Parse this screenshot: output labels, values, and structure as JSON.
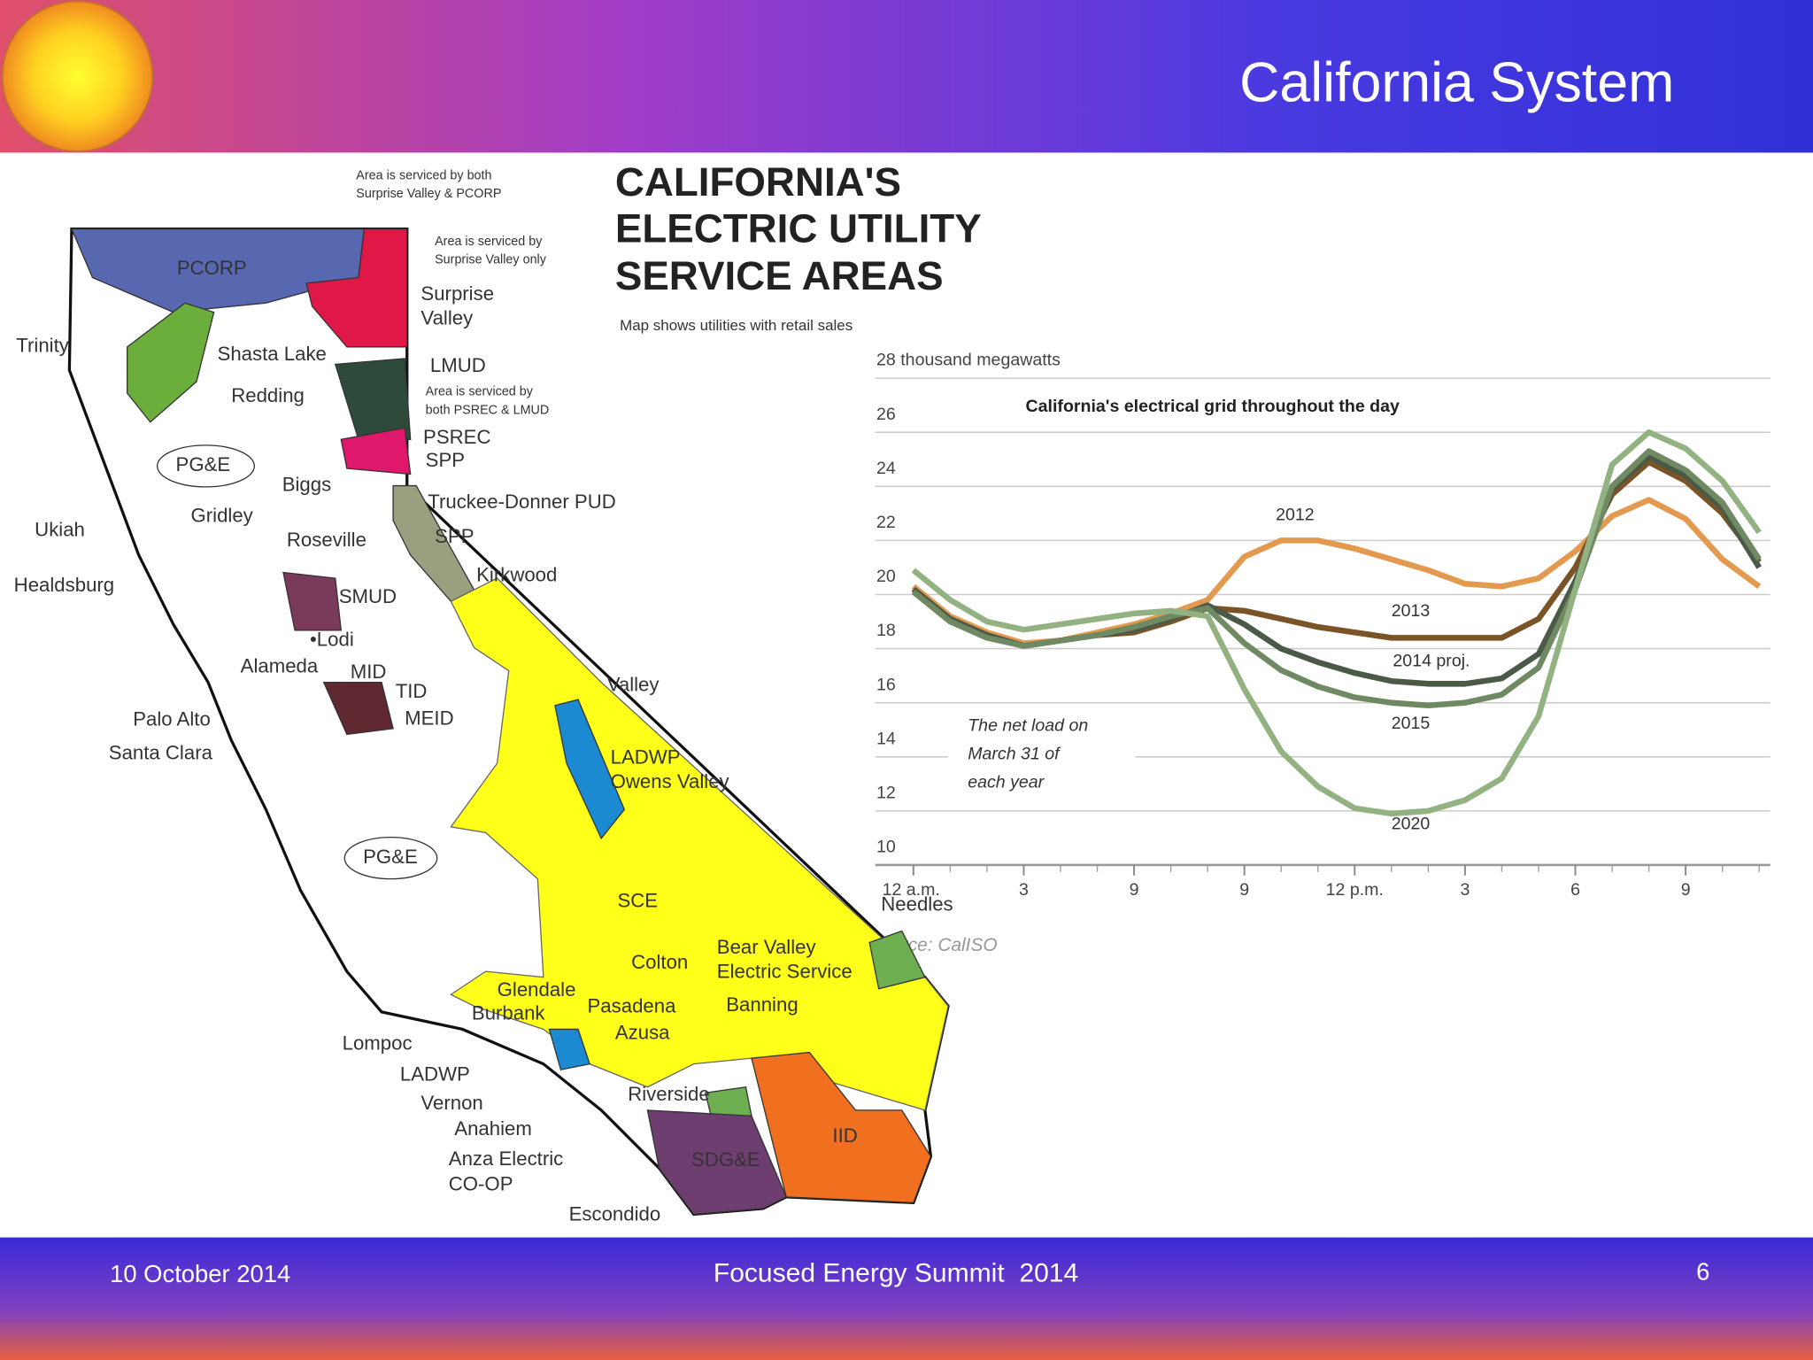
{
  "header": {
    "title": "California System"
  },
  "footer": {
    "date": "10 October 2014",
    "event": "Focused Energy Summit  2014",
    "page": "6"
  },
  "map": {
    "title": [
      "CALIFORNIA'S",
      "ELECTRIC UTILITY",
      "SERVICE AREAS"
    ],
    "subtitle": "Map shows utilities with retail sales",
    "labels": [
      "Area is serviced by both",
      "Surprise Valley & PCORP",
      "PCORP",
      "Area is serviced by",
      "Surprise Valley only",
      "Surprise",
      "Valley",
      "Trinity",
      "Shasta Lake",
      "Redding",
      "LMUD",
      "Area is serviced by",
      "both PSREC & LMUD",
      "PSREC",
      "SPP",
      "PG&E",
      "Biggs",
      "Gridley",
      "Truckee-Donner PUD",
      "Ukiah",
      "SPP",
      "Roseville",
      "Kirkwood",
      "Healdsburg",
      "SMUD",
      "•Lodi",
      "Alameda",
      "MID",
      "TID",
      "Valley",
      "MEID",
      "Palo Alto",
      "Santa Clara",
      "LADWP",
      "Owens Valley",
      "PG&E",
      "Needles",
      "SCE",
      "Bear Valley",
      "Electric Service",
      "Colton",
      "Glendale",
      "Burbank",
      "Pasadena",
      "Banning",
      "Azusa",
      "Lompoc",
      "LADWP",
      "Vernon",
      "Riverside",
      "IID",
      "Anahiem",
      "Anza Electric",
      "CO-OP",
      "SDG&E",
      "Escondido"
    ]
  },
  "chart_data": {
    "type": "line",
    "title": "California's electrical grid throughout the day",
    "annotation": [
      "The net load on",
      "March 31 of",
      "each year"
    ],
    "source": "rce: CalISO",
    "x": [
      0,
      1,
      2,
      3,
      4,
      5,
      6,
      7,
      8,
      9,
      10,
      11,
      12,
      13,
      14,
      15,
      16,
      17,
      18,
      19,
      20,
      21,
      22,
      23
    ],
    "xlim": [
      0,
      23.3
    ],
    "xticks": [
      {
        "value": 0,
        "label": "12 a.m."
      },
      3,
      {
        "value": 6,
        "label": "9"
      },
      9,
      {
        "value": 12,
        "label": "12 p.m."
      },
      {
        "value": 15,
        "label": "3"
      },
      {
        "value": 18,
        "label": "6"
      },
      {
        "value": 21,
        "label": "9"
      }
    ],
    "ylim": [
      10,
      28
    ],
    "yticks": [
      10,
      12,
      14,
      16,
      18,
      20,
      22,
      24,
      26,
      {
        "value": 28,
        "label": "28 thousand megawatts"
      }
    ],
    "grid": true,
    "series": [
      {
        "name": "2012",
        "color": "#e39a4f",
        "values": [
          20.3,
          19.2,
          18.6,
          18.2,
          18.3,
          18.6,
          18.9,
          19.3,
          19.8,
          21.4,
          22.0,
          22.0,
          21.7,
          21.3,
          20.9,
          20.4,
          20.3,
          20.6,
          21.6,
          22.9,
          23.5,
          22.8,
          21.3,
          20.3
        ]
      },
      {
        "name": "2013",
        "color": "#7a5426",
        "values": [
          20.2,
          19.1,
          18.5,
          18.1,
          18.3,
          18.5,
          18.6,
          19.0,
          19.5,
          19.4,
          19.1,
          18.8,
          18.6,
          18.4,
          18.4,
          18.4,
          18.4,
          19.1,
          21.0,
          23.7,
          24.9,
          24.2,
          23.0,
          21.2
        ]
      },
      {
        "name": "2014 proj.",
        "color": "#4b5a46",
        "values": [
          20.2,
          19.1,
          18.5,
          18.1,
          18.3,
          18.5,
          18.7,
          19.1,
          19.6,
          18.9,
          18.0,
          17.5,
          17.1,
          16.8,
          16.7,
          16.7,
          16.9,
          17.8,
          20.5,
          23.9,
          25.1,
          24.4,
          23.2,
          21.0
        ]
      },
      {
        "name": "2015",
        "color": "#6f8a63",
        "values": [
          20.1,
          19.0,
          18.4,
          18.1,
          18.3,
          18.5,
          18.8,
          19.2,
          19.5,
          18.2,
          17.2,
          16.6,
          16.2,
          16.0,
          15.9,
          16.0,
          16.3,
          17.3,
          20.2,
          24.0,
          25.3,
          24.6,
          23.4,
          21.3
        ]
      },
      {
        "name": "2020",
        "color": "#93b282",
        "values": [
          20.9,
          19.8,
          19.0,
          18.7,
          18.9,
          19.1,
          19.3,
          19.4,
          19.2,
          16.5,
          14.2,
          12.9,
          12.1,
          11.9,
          12.0,
          12.4,
          13.2,
          15.5,
          20.2,
          24.8,
          26.0,
          25.4,
          24.2,
          22.3
        ]
      }
    ]
  }
}
